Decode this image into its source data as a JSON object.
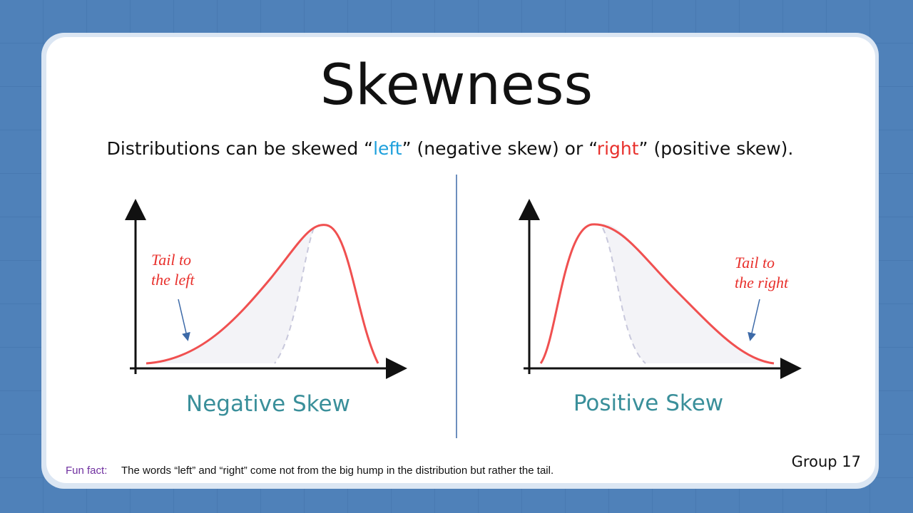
{
  "title": "Skewness",
  "subtitle": {
    "before": "Distributions can be skewed “",
    "left": "left",
    "middle": "” (negative skew) or “",
    "right": "right",
    "after": "” (positive skew)."
  },
  "panels": [
    {
      "caption": "Negative Skew",
      "annotation": [
        "Tail to",
        "the left"
      ]
    },
    {
      "caption": "Positive Skew",
      "annotation": [
        "Tail to",
        "the right"
      ]
    }
  ],
  "footer": {
    "label": "Fun fact:",
    "text": "The words “left” and “right” come not from the big hump in the distribution but rather the tail.",
    "group": "Group 17"
  }
}
